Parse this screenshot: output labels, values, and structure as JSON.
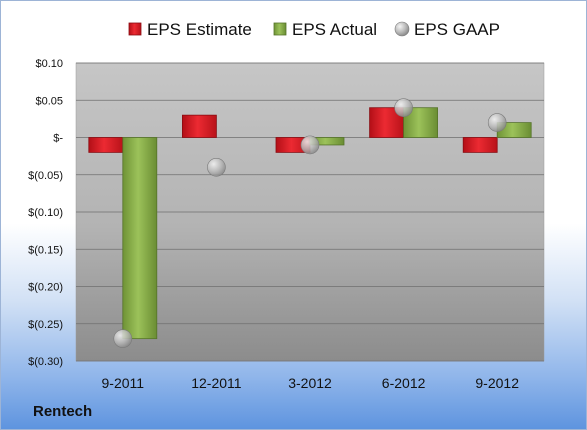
{
  "company": "Rentech",
  "chart_data": {
    "type": "bar",
    "categories": [
      "9-2011",
      "12-2011",
      "3-2012",
      "6-2012",
      "9-2012"
    ],
    "series": [
      {
        "name": "EPS Estimate",
        "kind": "bar",
        "color": "#e0222b",
        "values": [
          -0.02,
          0.03,
          -0.02,
          0.04,
          -0.02
        ]
      },
      {
        "name": "EPS Actual",
        "kind": "bar",
        "color": "#8fb84f",
        "values": [
          -0.27,
          null,
          -0.01,
          0.04,
          0.02
        ]
      },
      {
        "name": "EPS GAAP",
        "kind": "scatter",
        "color": "#b8b8b8",
        "values": [
          -0.27,
          -0.04,
          -0.01,
          0.04,
          0.02
        ]
      }
    ],
    "ylim": [
      -0.3,
      0.1
    ],
    "yticks": [
      0.1,
      0.05,
      0,
      -0.05,
      -0.1,
      -0.15,
      -0.2,
      -0.25,
      -0.3
    ],
    "ytick_labels": [
      "$0.10",
      "$0.05",
      "$-",
      "$(0.05)",
      "$(0.10)",
      "$(0.15)",
      "$(0.20)",
      "$(0.25)",
      "$(0.30)"
    ],
    "grid": true,
    "legend_position": "top"
  }
}
